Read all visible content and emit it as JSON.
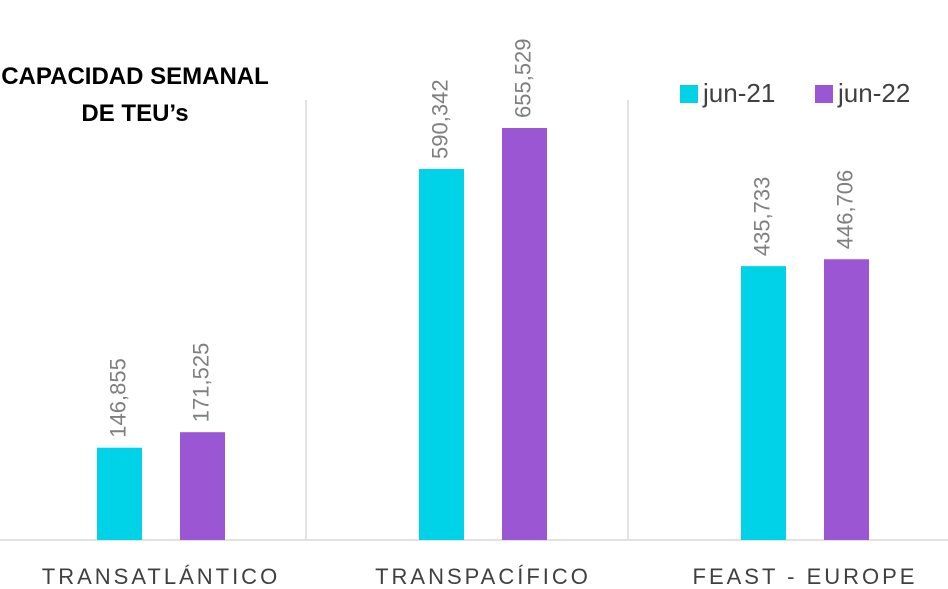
{
  "chart_data": {
    "type": "bar",
    "title": "CAPACIDAD SEMANAL DE TEU’s",
    "categories": [
      "TRANSATLÁNTICO",
      "TRANSPACÍFICO",
      "FEAST - EUROPE"
    ],
    "series": [
      {
        "name": "jun-21",
        "color": "#00d3e8",
        "values": [
          146855,
          590342,
          435733
        ],
        "value_labels": [
          "146,855",
          "590,342",
          "435,733"
        ]
      },
      {
        "name": "jun-22",
        "color": "#9b57d3",
        "values": [
          171525,
          655529,
          446706
        ],
        "value_labels": [
          "171,525",
          "655,529",
          "446,706"
        ]
      }
    ],
    "legend": "top-right"
  }
}
